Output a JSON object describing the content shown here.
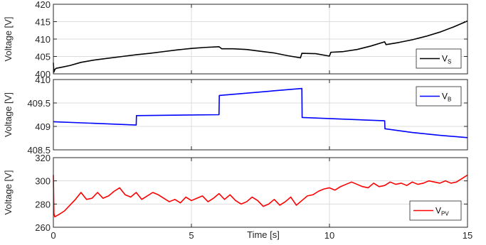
{
  "chart_data": [
    {
      "type": "line",
      "ylabel": "Voltage [V]",
      "xlabel": "",
      "xlim": [
        0,
        15
      ],
      "ylim": [
        400,
        420
      ],
      "xticks": [
        "0",
        "5",
        "10",
        "15"
      ],
      "yticks": [
        "400",
        "405",
        "410",
        "415",
        "420"
      ],
      "grid": true,
      "legend_position": "bottom-right",
      "legend": {
        "main": "V",
        "sub": "S"
      },
      "series": [
        {
          "name": "VS",
          "color": "#000000",
          "x": [
            0,
            0.02,
            0.05,
            0.1,
            0.3,
            0.6,
            1.0,
            1.5,
            2.0,
            2.5,
            3.0,
            3.5,
            4.0,
            4.5,
            5.0,
            5.5,
            6.0,
            6.1,
            6.5,
            7.0,
            7.5,
            8.0,
            8.5,
            8.95,
            9.0,
            9.5,
            10.0,
            10.05,
            10.5,
            11.0,
            11.5,
            12.0,
            12.05,
            12.5,
            13.0,
            13.5,
            14.0,
            14.5,
            15.0
          ],
          "y": [
            403.2,
            400.5,
            401.2,
            401.6,
            401.9,
            402.4,
            403.3,
            404.0,
            404.5,
            405.0,
            405.5,
            405.9,
            406.4,
            406.9,
            407.3,
            407.6,
            407.8,
            407.2,
            407.2,
            407.0,
            406.5,
            406.0,
            405.2,
            404.6,
            405.9,
            405.8,
            405.1,
            406.2,
            406.4,
            407.0,
            408.0,
            409.2,
            408.4,
            409.0,
            409.8,
            410.8,
            412.0,
            413.5,
            415.2
          ]
        }
      ]
    },
    {
      "type": "line",
      "ylabel": "Voltage [V]",
      "xlabel": "",
      "xlim": [
        0,
        15
      ],
      "ylim": [
        408.5,
        410
      ],
      "xticks": [
        "0",
        "5",
        "10",
        "15"
      ],
      "yticks": [
        "408.5",
        "409",
        "409.5",
        "410"
      ],
      "grid": true,
      "legend_position": "top-right",
      "legend": {
        "main": "V",
        "sub": "B"
      },
      "series": [
        {
          "name": "VB",
          "color": "#0000ff",
          "x": [
            0,
            3.0,
            3.01,
            6.0,
            6.01,
            9.0,
            9.01,
            12.0,
            12.01,
            13.0,
            14.0,
            15.0
          ],
          "y": [
            409.1,
            409.03,
            409.23,
            409.25,
            409.66,
            409.81,
            409.19,
            409.12,
            408.95,
            408.87,
            408.81,
            408.76
          ]
        }
      ]
    },
    {
      "type": "line",
      "ylabel": "Voltage [V]",
      "xlabel": "Time [s]",
      "xlim": [
        0,
        15
      ],
      "ylim": [
        260,
        320
      ],
      "xticks": [
        "0",
        "5",
        "10",
        "15"
      ],
      "yticks": [
        "260",
        "280",
        "300",
        "320"
      ],
      "grid": true,
      "legend_position": "bottom-right",
      "legend": {
        "main": "V",
        "sub": "PV"
      },
      "series": [
        {
          "name": "VPV",
          "color": "#ff0000",
          "x": [
            0,
            0.02,
            0.05,
            0.2,
            0.4,
            0.6,
            0.8,
            1.0,
            1.2,
            1.4,
            1.6,
            1.8,
            2.0,
            2.2,
            2.4,
            2.6,
            2.8,
            3.0,
            3.2,
            3.4,
            3.6,
            3.8,
            4.0,
            4.2,
            4.4,
            4.6,
            4.8,
            5.0,
            5.2,
            5.4,
            5.6,
            5.8,
            6.0,
            6.2,
            6.4,
            6.6,
            6.8,
            7.0,
            7.2,
            7.4,
            7.6,
            7.8,
            8.0,
            8.2,
            8.4,
            8.6,
            8.8,
            9.0,
            9.2,
            9.4,
            9.6,
            9.8,
            10.0,
            10.2,
            10.4,
            10.6,
            10.8,
            11.0,
            11.2,
            11.4,
            11.6,
            11.8,
            12.0,
            12.2,
            12.4,
            12.6,
            12.8,
            13.0,
            13.2,
            13.4,
            13.6,
            13.8,
            14.0,
            14.2,
            14.4,
            14.6,
            14.8,
            15.0
          ],
          "y": [
            305,
            272,
            269,
            271,
            274,
            279,
            284,
            290,
            284,
            285,
            290,
            285,
            287,
            291,
            294,
            288,
            286,
            290,
            284,
            287,
            290,
            288,
            285,
            282,
            284,
            281,
            286,
            283,
            285,
            287,
            282,
            285,
            289,
            284,
            288,
            283,
            280,
            282,
            286,
            283,
            278,
            280,
            284,
            279,
            282,
            286,
            279,
            283,
            287,
            288,
            291,
            293,
            294,
            292,
            295,
            297,
            299,
            297,
            295,
            294,
            298,
            295,
            296,
            299,
            297,
            298,
            296,
            299,
            297,
            298,
            300,
            299,
            298,
            300,
            298,
            299,
            302,
            305
          ]
        }
      ]
    }
  ]
}
